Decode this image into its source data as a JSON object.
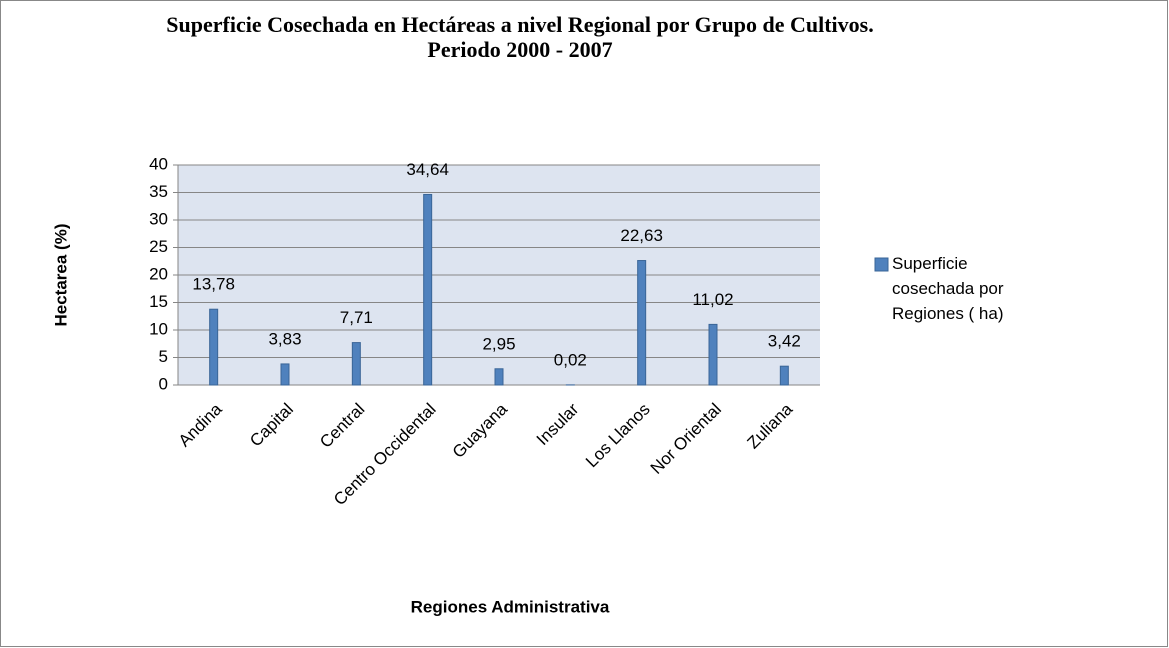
{
  "chart_data": {
    "type": "bar",
    "title": "Superficie Cosechada en Hectáreas a nivel Regional por Grupo de Cultivos.",
    "subtitle": "Periodo 2000 - 2007",
    "y_label": "Hectarea (%)",
    "x_label": "Regiones Administrativa",
    "categories": [
      "Andina",
      "Capital",
      "Central",
      "Centro Occidental",
      "Guayana",
      "Insular",
      "Los Llanos",
      "Nor Oriental",
      "Zuliana"
    ],
    "series": [
      {
        "name": "Superficie cosechada por Regiones ( ha)",
        "color": "#4f81bd",
        "values": [
          13.78,
          3.83,
          7.71,
          34.64,
          2.95,
          0.02,
          22.63,
          11.02,
          3.42
        ],
        "value_labels": [
          "13,78",
          "3,83",
          "7,71",
          "34,64",
          "2,95",
          "0,02",
          "22,63",
          "11,02",
          "3,42"
        ]
      }
    ],
    "ylim": [
      0,
      40
    ],
    "yticks": [
      0,
      5,
      10,
      15,
      20,
      25,
      30,
      35,
      40
    ],
    "grid": true,
    "legend": "right"
  }
}
